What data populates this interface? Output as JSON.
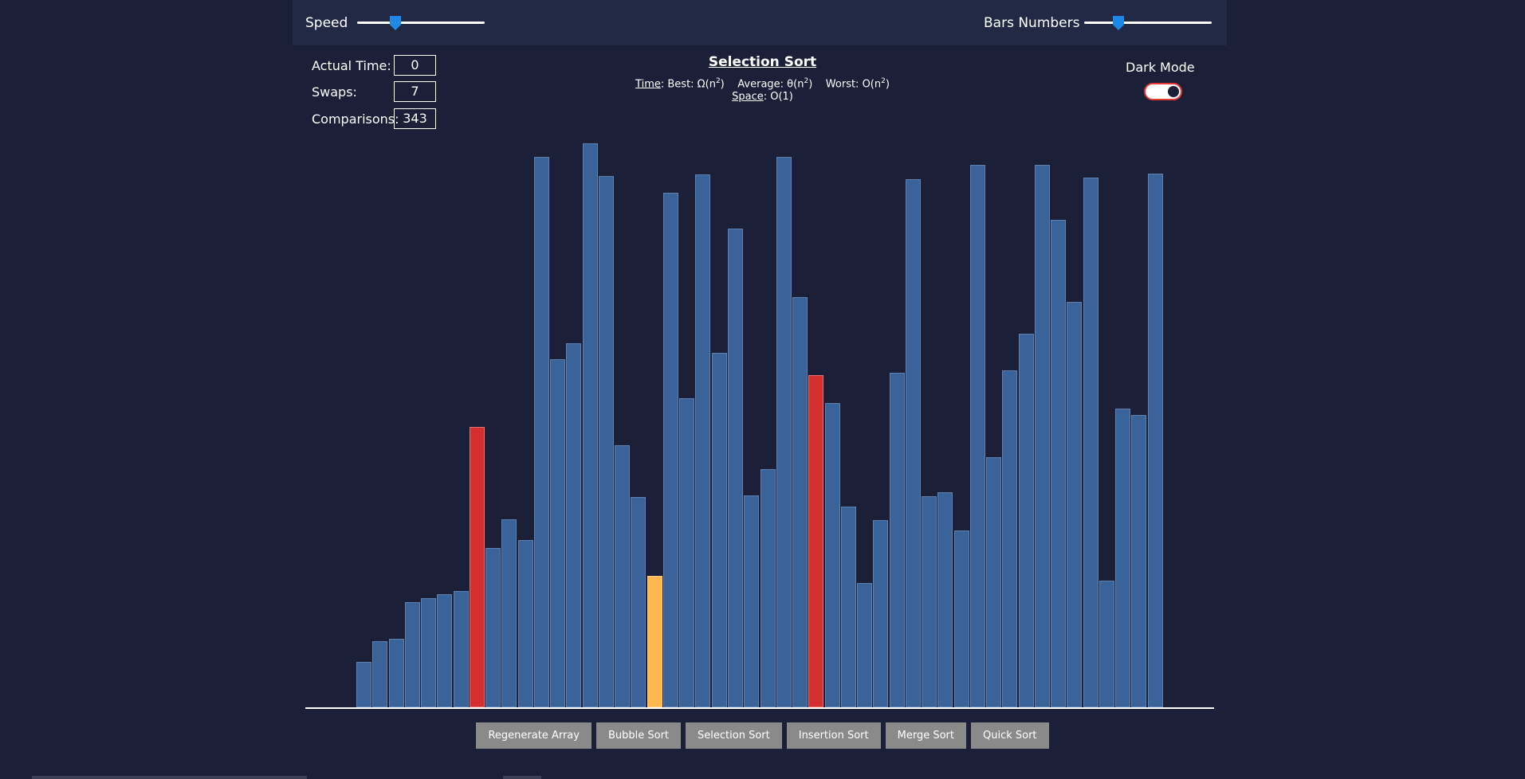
{
  "controls": {
    "speed_label": "Speed",
    "speed_level": 0.3,
    "bars_label": "Bars Numbers",
    "bars_level": 0.27
  },
  "stats": {
    "time_label": "Actual Time:",
    "time_value": "0",
    "swaps_label": "Swaps:",
    "swaps_value": "7",
    "comparisons_label": "Comparisons:",
    "comparisons_value": "343"
  },
  "algorithm": {
    "title": "Selection Sort",
    "time_label": "Time",
    "best": ": Best: Ω(n",
    "average": "Average: θ(n",
    "worst": "Worst: O(n",
    "exponent": "2",
    "close": ")",
    "space_label": "Space",
    "space": ": O(1)"
  },
  "dark_mode": {
    "label": "Dark Mode",
    "on": true
  },
  "buttons": [
    "Regenerate Array",
    "Bubble Sort",
    "Selection Sort",
    "Insertion Sort",
    "Merge Sort",
    "Quick Sort"
  ],
  "colors": {
    "background": "#1b1f37",
    "bar": "#3a6399",
    "compare": "#d32f2f",
    "current": "#ffb74d",
    "toggle_border": "#e53935"
  },
  "bars": {
    "max_value": 100,
    "values": [
      8.0,
      11.7,
      12.1,
      18.7,
      19.4,
      20.0,
      20.6,
      49.7,
      28.3,
      33.4,
      29.7,
      97.6,
      61.7,
      64.6,
      100.0,
      94.2,
      46.4,
      37.3,
      23.3,
      91.3,
      54.8,
      94.5,
      62.9,
      84.9,
      37.6,
      42.2,
      97.6,
      72.8,
      58.9,
      54.0,
      35.6,
      22.0,
      33.2,
      59.3,
      93.7,
      37.4,
      38.1,
      31.3,
      96.2,
      44.4,
      59.8,
      66.3,
      96.2,
      86.5,
      71.9,
      93.9,
      22.4,
      53.0,
      51.8,
      94.7
    ],
    "compare_indices": [
      7,
      28
    ],
    "current_index": 18
  }
}
